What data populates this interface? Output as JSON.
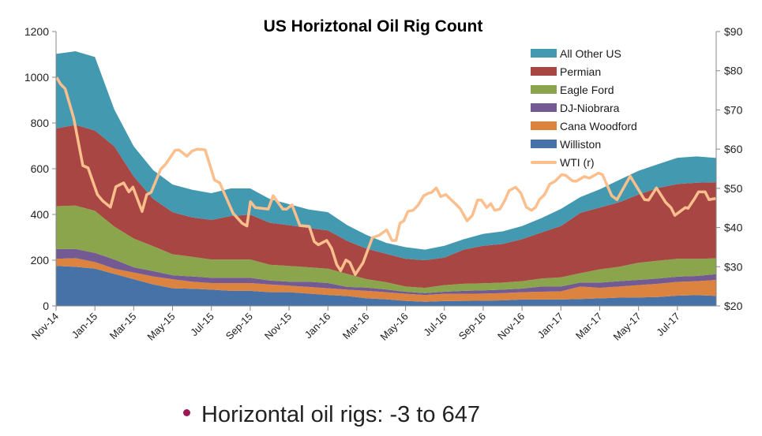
{
  "chart_data": {
    "type": "area",
    "title": "US Horiztonal Oil Rig Count",
    "x_unit": "months since Nov-14",
    "x_tick_labels": [
      "Nov-14",
      "Jan-15",
      "Mar-15",
      "May-15",
      "Jul-15",
      "Sep-15",
      "Nov-15",
      "Jan-16",
      "Mar-16",
      "May-16",
      "Jul-16",
      "Sep-16",
      "Nov-16",
      "Jan-17",
      "Mar-17",
      "May-17",
      "Jul-17"
    ],
    "xlim": [
      0,
      34
    ],
    "ylim": [
      0,
      1200
    ],
    "y_ticks": [
      0,
      200,
      400,
      600,
      800,
      1000,
      1200
    ],
    "y_tick_labels": [
      "0",
      "200",
      "400",
      "600",
      "800",
      "1000",
      "1200"
    ],
    "y2lim": [
      20,
      90
    ],
    "y2_ticks": [
      20,
      30,
      40,
      50,
      60,
      70,
      80,
      90
    ],
    "y2_tick_labels": [
      "$20",
      "$30",
      "$40",
      "$50",
      "$60",
      "$70",
      "$80",
      "$90"
    ],
    "legend_position": "top-right",
    "series": [
      {
        "name": "Williston",
        "color": "#4672a8",
        "values": [
          175,
          171,
          163,
          140,
          117,
          94,
          77,
          75,
          71,
          66,
          66,
          60,
          60,
          54,
          48,
          43,
          33,
          29,
          22,
          18,
          21,
          22,
          23,
          24,
          28,
          28,
          28,
          30,
          33,
          36,
          37,
          39,
          45,
          47,
          44
        ]
      },
      {
        "name": "Cana Woodford",
        "color": "#dc8340",
        "values": [
          31,
          38,
          29,
          23,
          29,
          35,
          40,
          31,
          29,
          34,
          34,
          34,
          29,
          29,
          29,
          28,
          33,
          31,
          31,
          30,
          32,
          31,
          31,
          32,
          32,
          34,
          36,
          55,
          46,
          49,
          54,
          58,
          60,
          61,
          70
        ]
      },
      {
        "name": "DJ-Niobrara",
        "color": "#735a92",
        "values": [
          43,
          40,
          40,
          40,
          23,
          23,
          17,
          23,
          23,
          23,
          23,
          17,
          17,
          23,
          23,
          12,
          14,
          12,
          9,
          8,
          9,
          13,
          14,
          15,
          16,
          23,
          21,
          17,
          23,
          23,
          23,
          23,
          23,
          23,
          25
        ]
      },
      {
        "name": "Eagle Ford",
        "color": "#8aa54c",
        "values": [
          187,
          190,
          184,
          144,
          126,
          109,
          92,
          86,
          80,
          80,
          80,
          69,
          69,
          63,
          63,
          57,
          37,
          32,
          23,
          23,
          29,
          31,
          31,
          31,
          32,
          35,
          40,
          41,
          58,
          63,
          75,
          78,
          78,
          75,
          69
        ]
      },
      {
        "name": "Permian",
        "color": "#a84644",
        "values": [
          340,
          353,
          351,
          351,
          271,
          207,
          184,
          172,
          173,
          190,
          196,
          184,
          178,
          172,
          167,
          144,
          133,
          124,
          121,
          121,
          120,
          149,
          164,
          169,
          184,
          201,
          224,
          264,
          270,
          282,
          298,
          318,
          327,
          333,
          333
        ]
      },
      {
        "name": "All Other US",
        "color": "#4399b0",
        "values": [
          326,
          322,
          322,
          161,
          132,
          126,
          121,
          121,
          117,
          121,
          115,
          104,
          92,
          81,
          80,
          69,
          60,
          48,
          51,
          46,
          52,
          46,
          52,
          55,
          57,
          63,
          75,
          69,
          80,
          98,
          104,
          104,
          115,
          115,
          106
        ]
      }
    ],
    "line_series": {
      "name": "WTI (r)",
      "color": "#fbbf8d",
      "axis": "right",
      "t": [
        0.03,
        0.23,
        0.47,
        0.91,
        1.38,
        1.65,
        2.13,
        2.4,
        2.8,
        3.08,
        3.48,
        3.75,
        3.96,
        4.43,
        4.67,
        4.9,
        5.38,
        5.65,
        6.13,
        6.33,
        6.74,
        7.0,
        7.28,
        7.68,
        8.16,
        8.43,
        9.11,
        9.58,
        9.83,
        10.01,
        10.26,
        10.93,
        11.18,
        11.68,
        11.88,
        12.15,
        12.56,
        13.04,
        13.3,
        13.51,
        13.94,
        14.19,
        14.46,
        14.66,
        14.93,
        15.13,
        15.41,
        15.81,
        16.29,
        16.63,
        17.03,
        17.3,
        17.51,
        17.71,
        17.91,
        18.12,
        18.39,
        18.66,
        18.93,
        19.2,
        19.33,
        19.58,
        19.81,
        20.08,
        20.28,
        20.56,
        20.83,
        21.17,
        21.44,
        21.71,
        21.91,
        22.18,
        22.39,
        22.59,
        22.86,
        23.13,
        23.33,
        23.67,
        23.94,
        24.22,
        24.48,
        24.69,
        24.89,
        25.16,
        25.43,
        25.7,
        26.04,
        26.25,
        26.59,
        26.79,
        27.2,
        27.47,
        27.94,
        28.14,
        28.62,
        28.89,
        29.57,
        30.31,
        30.52,
        30.92,
        31.4,
        31.67,
        31.87,
        32.14,
        32.41,
        32.55,
        32.89,
        33.09,
        33.43,
        33.63,
        33.97
      ],
      "v": [
        78.3,
        76.6,
        75.4,
        67.9,
        55.8,
        55.2,
        48.4,
        46.8,
        45.2,
        50.4,
        51.4,
        49.1,
        50.3,
        44.1,
        48.4,
        49.0,
        54.8,
        56.2,
        59.7,
        59.8,
        58.2,
        59.5,
        60.0,
        59.8,
        52.1,
        51.4,
        43.7,
        41.1,
        40.4,
        46.6,
        45.1,
        44.7,
        48.1,
        44.7,
        44.7,
        45.8,
        40.5,
        40.3,
        36.4,
        35.6,
        36.7,
        34.7,
        30.5,
        29.0,
        31.7,
        31.1,
        28.0,
        31.0,
        37.4,
        38.0,
        39.4,
        36.7,
        36.7,
        41.1,
        41.7,
        44.1,
        44.4,
        45.8,
        48.1,
        48.8,
        48.9,
        50.1,
        47.9,
        48.4,
        47.4,
        46.1,
        44.7,
        41.7,
        43.1,
        47.0,
        47.0,
        45.1,
        46.1,
        44.4,
        44.7,
        47.1,
        49.4,
        50.3,
        48.8,
        45.2,
        44.4,
        45.1,
        47.1,
        48.4,
        51.1,
        51.8,
        53.5,
        53.3,
        51.9,
        51.8,
        53.0,
        52.6,
        53.9,
        53.5,
        48.1,
        47.1,
        53.1,
        47.1,
        47.0,
        50.1,
        46.4,
        45.1,
        43.1,
        44.1,
        45.1,
        44.9,
        47.4,
        49.1,
        49.1,
        47.1,
        47.4
      ]
    }
  },
  "legend": {
    "items": [
      {
        "label": "All Other US",
        "color": "#4399b0"
      },
      {
        "label": "Permian",
        "color": "#a84644"
      },
      {
        "label": "Eagle Ford",
        "color": "#8aa54c"
      },
      {
        "label": "DJ-Niobrara",
        "color": "#735a92"
      },
      {
        "label": "Cana Woodford",
        "color": "#dc8340"
      },
      {
        "label": "Williston",
        "color": "#4672a8"
      },
      {
        "label": "WTI (r)",
        "color": "#fbbf8d"
      }
    ]
  },
  "caption": {
    "text": "Horizontal oil rigs: -3 to 647",
    "bullet_color": "#9a1a55"
  }
}
